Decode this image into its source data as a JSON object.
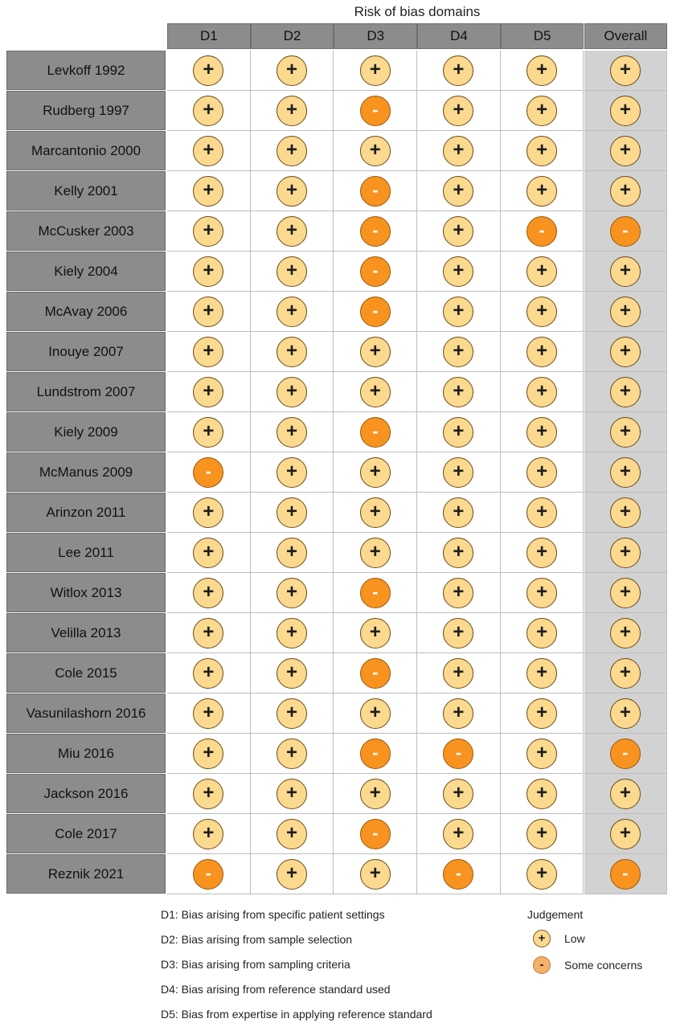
{
  "chart_data": {
    "type": "table",
    "title": "Risk of bias domains",
    "columns": [
      "D1",
      "D2",
      "D3",
      "D4",
      "D5",
      "Overall"
    ],
    "rows": [
      {
        "study": "Levkoff 1992",
        "judgements": [
          "low",
          "low",
          "low",
          "low",
          "low",
          "low"
        ]
      },
      {
        "study": "Rudberg 1997",
        "judgements": [
          "low",
          "low",
          "some",
          "low",
          "low",
          "low"
        ]
      },
      {
        "study": "Marcantonio 2000",
        "judgements": [
          "low",
          "low",
          "low",
          "low",
          "low",
          "low"
        ]
      },
      {
        "study": "Kelly 2001",
        "judgements": [
          "low",
          "low",
          "some",
          "low",
          "low",
          "low"
        ]
      },
      {
        "study": "McCusker 2003",
        "judgements": [
          "low",
          "low",
          "some",
          "low",
          "some",
          "some"
        ]
      },
      {
        "study": "Kiely 2004",
        "judgements": [
          "low",
          "low",
          "some",
          "low",
          "low",
          "low"
        ]
      },
      {
        "study": "McAvay 2006",
        "judgements": [
          "low",
          "low",
          "some",
          "low",
          "low",
          "low"
        ]
      },
      {
        "study": "Inouye 2007",
        "judgements": [
          "low",
          "low",
          "low",
          "low",
          "low",
          "low"
        ]
      },
      {
        "study": "Lundstrom 2007",
        "judgements": [
          "low",
          "low",
          "low",
          "low",
          "low",
          "low"
        ]
      },
      {
        "study": "Kiely 2009",
        "judgements": [
          "low",
          "low",
          "some",
          "low",
          "low",
          "low"
        ]
      },
      {
        "study": "McManus 2009",
        "judgements": [
          "some",
          "low",
          "low",
          "low",
          "low",
          "low"
        ]
      },
      {
        "study": "Arinzon 2011",
        "judgements": [
          "low",
          "low",
          "low",
          "low",
          "low",
          "low"
        ]
      },
      {
        "study": "Lee 2011",
        "judgements": [
          "low",
          "low",
          "low",
          "low",
          "low",
          "low"
        ]
      },
      {
        "study": "Witlox 2013",
        "judgements": [
          "low",
          "low",
          "some",
          "low",
          "low",
          "low"
        ]
      },
      {
        "study": "Velilla 2013",
        "judgements": [
          "low",
          "low",
          "low",
          "low",
          "low",
          "low"
        ]
      },
      {
        "study": "Cole 2015",
        "judgements": [
          "low",
          "low",
          "some",
          "low",
          "low",
          "low"
        ]
      },
      {
        "study": "Vasunilashorn 2016",
        "judgements": [
          "low",
          "low",
          "low",
          "low",
          "low",
          "low"
        ]
      },
      {
        "study": "Miu 2016",
        "judgements": [
          "low",
          "low",
          "some",
          "some",
          "low",
          "some"
        ]
      },
      {
        "study": "Jackson 2016",
        "judgements": [
          "low",
          "low",
          "low",
          "low",
          "low",
          "low"
        ]
      },
      {
        "study": "Cole 2017",
        "judgements": [
          "low",
          "low",
          "some",
          "low",
          "low",
          "low"
        ]
      },
      {
        "study": "Reznik 2021",
        "judgements": [
          "some",
          "low",
          "low",
          "some",
          "low",
          "some"
        ]
      }
    ],
    "symbols": {
      "low": "+",
      "some": "-"
    },
    "colors": {
      "low": "#fbd98e",
      "some": "#f7931e",
      "header": "#8c8c8c",
      "overall_bg": "#d2d2d2"
    }
  },
  "legend": {
    "definitions": [
      "D1: Bias arising from specific patient settings",
      "D2: Bias arising from sample selection",
      "D3: Bias arising from sampling criteria",
      "D4: Bias arising from reference standard used",
      "D5: Bias from expertise in applying reference standard"
    ],
    "judgement_title": "Judgement",
    "keys": [
      {
        "symbol": "+",
        "label": "Low",
        "level": "low"
      },
      {
        "symbol": "-",
        "label": "Some concerns",
        "level": "some"
      }
    ]
  }
}
